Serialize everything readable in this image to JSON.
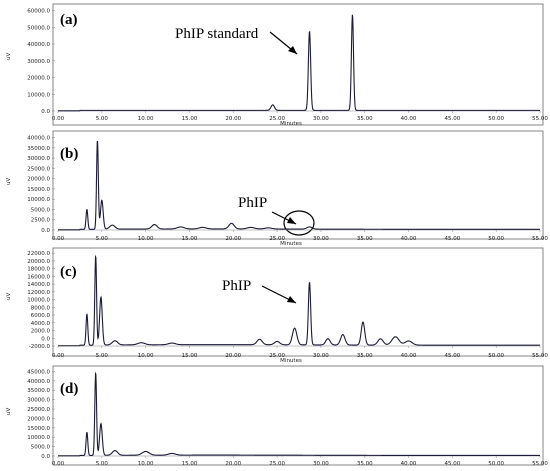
{
  "chart_data": [
    {
      "type": "line",
      "panel_label": "(a)",
      "xlabel": "Minutes",
      "ylabel": "uV",
      "xlim": [
        0,
        55
      ],
      "ylim": [
        0,
        65000
      ],
      "x_ticks": [
        "0.00",
        "5.00",
        "10.00",
        "15.00",
        "20.00",
        "25.00",
        "30.00",
        "35.00",
        "40.00",
        "45.00",
        "50.00",
        "55.00"
      ],
      "y_ticks": [
        "0.0",
        "10000.0",
        "20000.0",
        "30000.0",
        "40000.0",
        "50000.0",
        "60000.0"
      ],
      "baseline": 400,
      "peaks": [
        {
          "x": 24.5,
          "y": 3500,
          "w": 0.2
        },
        {
          "x": 28.7,
          "y": 50000,
          "w": 0.13
        },
        {
          "x": 33.6,
          "y": 60500,
          "w": 0.12
        }
      ],
      "annotation": {
        "text": "PhIP standard",
        "x": 28.7,
        "y": 50000
      }
    },
    {
      "type": "line",
      "panel_label": "(b)",
      "xlabel": "Minutes",
      "ylabel": "uV",
      "xlim": [
        0,
        55
      ],
      "ylim": [
        0,
        42000
      ],
      "x_ticks": [
        "0.00",
        "5.00",
        "10.00",
        "15.00",
        "20.00",
        "25.00",
        "30.00",
        "35.00",
        "40.00",
        "45.00",
        "50.00",
        "55.00"
      ],
      "y_ticks": [
        "0.0",
        "2500.0",
        "5000.0",
        "10000.0",
        "15000.0",
        "20000.0",
        "25000.0",
        "30000.0",
        "35000.0",
        "40000.0"
      ],
      "baseline": 300,
      "peaks": [
        {
          "x": 3.3,
          "y": 9000,
          "w": 0.1
        },
        {
          "x": 4.5,
          "y": 40000,
          "w": 0.1
        },
        {
          "x": 5.0,
          "y": 13000,
          "w": 0.15
        },
        {
          "x": 6.2,
          "y": 1800,
          "w": 0.3
        },
        {
          "x": 11.0,
          "y": 2000,
          "w": 0.3
        },
        {
          "x": 14.0,
          "y": 900,
          "w": 0.4
        },
        {
          "x": 16.5,
          "y": 700,
          "w": 0.4
        },
        {
          "x": 19.8,
          "y": 2500,
          "w": 0.3
        },
        {
          "x": 22.0,
          "y": 700,
          "w": 0.4
        },
        {
          "x": 24.0,
          "y": 500,
          "w": 0.4
        },
        {
          "x": 28.7,
          "y": 1000,
          "w": 0.3
        }
      ],
      "annotation": {
        "text": "PhIP",
        "x": 28.7,
        "y": 1000
      }
    },
    {
      "type": "line",
      "panel_label": "(c)",
      "xlabel": "Minutes",
      "ylabel": "uV",
      "xlim": [
        0,
        55
      ],
      "ylim": [
        0,
        22500
      ],
      "x_ticks": [
        "0.00",
        "5.00",
        "10.00",
        "15.00",
        "20.00",
        "25.00",
        "30.00",
        "35.00",
        "40.00",
        "45.00",
        "50.00",
        "55.00"
      ],
      "y_ticks": [
        "-2000.0",
        "0.0",
        "2000.0",
        "4000.0",
        "6000.0",
        "8000.0",
        "10000.0",
        "12000.0",
        "14000.0",
        "16000.0",
        "18000.0",
        "20000.0",
        "22000.0"
      ],
      "baseline": 200,
      "peaks": [
        {
          "x": 3.3,
          "y": 7500,
          "w": 0.1
        },
        {
          "x": 4.3,
          "y": 21500,
          "w": 0.1
        },
        {
          "x": 4.9,
          "y": 11500,
          "w": 0.15
        },
        {
          "x": 6.5,
          "y": 1000,
          "w": 0.3
        },
        {
          "x": 9.5,
          "y": 500,
          "w": 0.4
        },
        {
          "x": 13.0,
          "y": 400,
          "w": 0.4
        },
        {
          "x": 23.0,
          "y": 1300,
          "w": 0.3
        },
        {
          "x": 25.0,
          "y": 800,
          "w": 0.3
        },
        {
          "x": 27.0,
          "y": 4000,
          "w": 0.25
        },
        {
          "x": 28.7,
          "y": 15000,
          "w": 0.13
        },
        {
          "x": 30.8,
          "y": 1500,
          "w": 0.25
        },
        {
          "x": 32.5,
          "y": 2500,
          "w": 0.25
        },
        {
          "x": 34.8,
          "y": 5500,
          "w": 0.2
        },
        {
          "x": 36.8,
          "y": 1500,
          "w": 0.3
        },
        {
          "x": 38.5,
          "y": 2000,
          "w": 0.4
        },
        {
          "x": 40.0,
          "y": 1000,
          "w": 0.4
        }
      ],
      "annotation": {
        "text": "PhIP",
        "x": 28.7,
        "y": 15000
      }
    },
    {
      "type": "line",
      "panel_label": "(d)",
      "xlabel": "Minutes",
      "ylabel": "uV",
      "xlim": [
        0,
        55
      ],
      "ylim": [
        0,
        46000
      ],
      "x_ticks": [
        "0.00",
        "5.00",
        "10.00",
        "15.00",
        "20.00",
        "25.00",
        "30.00",
        "35.00",
        "40.00",
        "45.00",
        "50.00",
        "55.00"
      ],
      "y_ticks": [
        "0.0",
        "5000.0",
        "10000.0",
        "15000.0",
        "20000.0",
        "25000.0",
        "30000.0",
        "35000.0",
        "40000.0",
        "45000.0"
      ],
      "baseline": 300,
      "peaks": [
        {
          "x": 3.3,
          "y": 12500,
          "w": 0.1
        },
        {
          "x": 4.3,
          "y": 44500,
          "w": 0.1
        },
        {
          "x": 4.9,
          "y": 17000,
          "w": 0.15
        },
        {
          "x": 6.5,
          "y": 2500,
          "w": 0.3
        },
        {
          "x": 10.0,
          "y": 2000,
          "w": 0.4
        },
        {
          "x": 13.0,
          "y": 900,
          "w": 0.4
        }
      ]
    }
  ]
}
